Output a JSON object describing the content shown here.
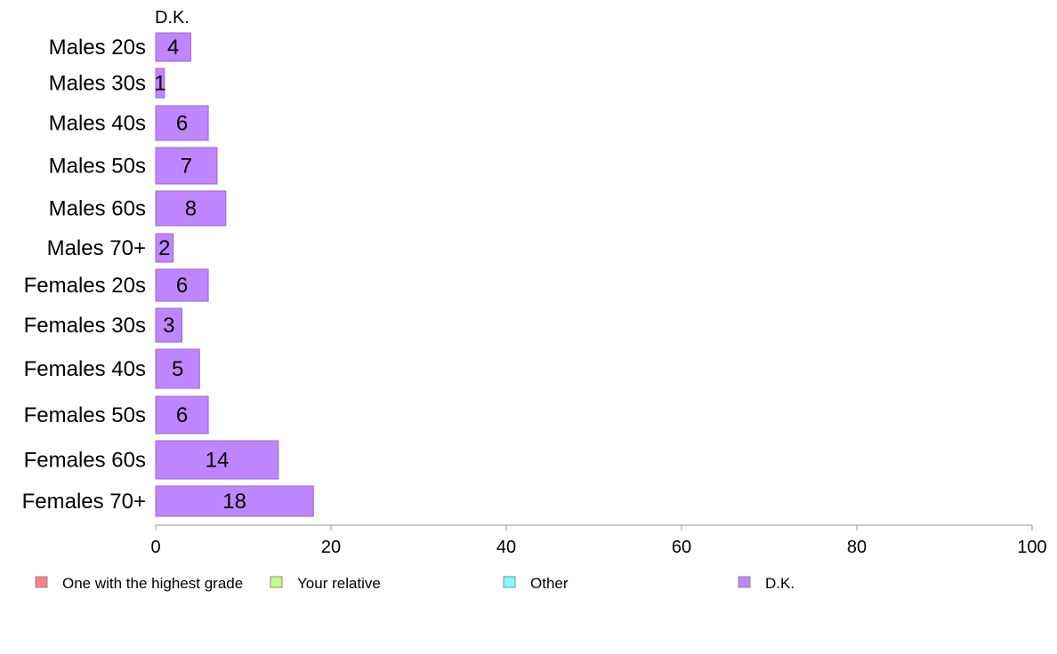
{
  "chart_data": {
    "type": "bar",
    "orientation": "horizontal",
    "series_label": "D.K.",
    "categories": [
      "Males 20s",
      "Males 30s",
      "Males 40s",
      "Males 50s",
      "Males 60s",
      "Males 70+",
      "Females 20s",
      "Females 30s",
      "Females 40s",
      "Females 50s",
      "Females 60s",
      "Females 70+"
    ],
    "series": [
      {
        "name": "D.K.",
        "values": [
          4,
          1,
          6,
          7,
          8,
          2,
          6,
          3,
          5,
          6,
          14,
          18
        ],
        "color": "#bf86ff"
      }
    ],
    "xlim": [
      0,
      100
    ],
    "xticks": [
      "0",
      "20",
      "40",
      "60",
      "80",
      "100"
    ],
    "legend": [
      {
        "label": "One with the highest grade",
        "color": "#ff8080"
      },
      {
        "label": "Your relative",
        "color": "#c6ff80"
      },
      {
        "label": "Other",
        "color": "#80ffff"
      },
      {
        "label": "D.K.",
        "color": "#bf86ff"
      }
    ],
    "legend_position": "bottom",
    "grid": false
  }
}
